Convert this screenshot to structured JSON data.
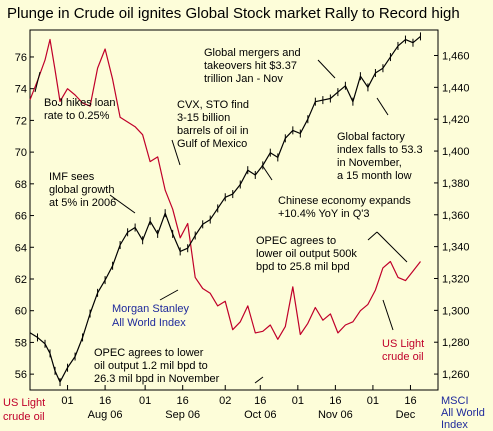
{
  "chart_data": {
    "type": "line",
    "title": "Plunge in Crude oil ignites Global Stock market Rally to Record high",
    "left_axis": {
      "label_lines": [
        "US Light",
        "crude oil"
      ],
      "ticks": [
        56,
        58,
        60,
        62,
        64,
        66,
        68,
        70,
        72,
        74,
        76
      ],
      "ylim": [
        55,
        77.7
      ]
    },
    "right_axis": {
      "label_lines": [
        "MSCI",
        "All World",
        "Index"
      ],
      "ticks": [
        "1,260",
        "1,280",
        "1,300",
        "1,320",
        "1,340",
        "1,360",
        "1,380",
        "1,400",
        "1,420",
        "1,440",
        "1,460"
      ],
      "tick_values": [
        1260,
        1280,
        1300,
        1320,
        1340,
        1360,
        1380,
        1400,
        1420,
        1440,
        1460
      ],
      "ylim": [
        1250,
        1476
      ]
    },
    "x_axis": {
      "day_ticks": [
        {
          "label": "01",
          "day": 0
        },
        {
          "label": "16",
          "day": 15
        },
        {
          "label": "01",
          "day": 31
        },
        {
          "label": "16",
          "day": 46
        },
        {
          "label": "02",
          "day": 63
        },
        {
          "label": "16",
          "day": 77
        },
        {
          "label": "01",
          "day": 92
        },
        {
          "label": "16",
          "day": 107
        },
        {
          "label": "01",
          "day": 122
        },
        {
          "label": "16",
          "day": 137
        }
      ],
      "month_labels": [
        {
          "label": "Aug 06",
          "day": 15
        },
        {
          "label": "Sep 06",
          "day": 46
        },
        {
          "label": "Oct 06",
          "day": 77
        },
        {
          "label": "Nov 06",
          "day": 107
        },
        {
          "label": "Dec",
          "day": 135
        }
      ],
      "xlim": [
        -15,
        148
      ]
    },
    "series": [
      {
        "name": "US Light crude oil",
        "axis": "left",
        "color": "#c0002a",
        "x": [
          -15,
          -12,
          -9,
          -7,
          -5,
          -3,
          0,
          3,
          6,
          9,
          12,
          15,
          18,
          21,
          24,
          27,
          30,
          33,
          36,
          39,
          42,
          45,
          48,
          51,
          54,
          57,
          60,
          63,
          66,
          69,
          72,
          75,
          78,
          81,
          84,
          87,
          90,
          93,
          96,
          99,
          102,
          105,
          108,
          111,
          114,
          117,
          120,
          123,
          126,
          129,
          132,
          135,
          138,
          141
        ],
        "values": [
          73.3,
          74.5,
          75.8,
          77.1,
          75.2,
          73.2,
          74.0,
          73.6,
          73.1,
          72.9,
          75.3,
          76.5,
          74.6,
          72.2,
          71.9,
          71.6,
          71.1,
          69.4,
          69.7,
          67.6,
          66.4,
          64.6,
          65.5,
          62.1,
          61.4,
          61.1,
          60.3,
          60.6,
          58.8,
          59.3,
          60.3,
          58.6,
          58.7,
          59.1,
          58.2,
          59.0,
          61.5,
          58.5,
          59.2,
          60.2,
          59.4,
          59.8,
          58.6,
          59.1,
          59.3,
          60.0,
          60.4,
          61.3,
          62.7,
          63.1,
          62.1,
          61.9,
          62.5,
          63.1
        ]
      },
      {
        "name": "Morgan Stanley All World Index",
        "axis": "right",
        "color": "#000000",
        "x": [
          -15,
          -12,
          -9,
          -7,
          -5,
          -3,
          0,
          3,
          6,
          9,
          12,
          15,
          18,
          21,
          24,
          27,
          30,
          33,
          36,
          39,
          42,
          45,
          48,
          51,
          54,
          57,
          60,
          63,
          66,
          69,
          72,
          75,
          78,
          81,
          84,
          87,
          90,
          93,
          96,
          99,
          102,
          105,
          108,
          111,
          114,
          117,
          120,
          123,
          126,
          129,
          132,
          135,
          138,
          141
        ],
        "values": [
          1286,
          1283,
          1279,
          1273,
          1262,
          1255,
          1264,
          1271,
          1283,
          1298,
          1311,
          1319,
          1328,
          1341,
          1349,
          1352,
          1344,
          1356,
          1348,
          1361,
          1348,
          1337,
          1339,
          1347,
          1354,
          1357,
          1364,
          1371,
          1373,
          1379,
          1388,
          1385,
          1391,
          1399,
          1396,
          1408,
          1413,
          1411,
          1420,
          1431,
          1432,
          1433,
          1437,
          1441,
          1431,
          1447,
          1440,
          1449,
          1452,
          1459,
          1466,
          1470,
          1468,
          1472
        ]
      }
    ],
    "legend_labels": [
      {
        "series": "Morgan Stanley All World Index",
        "lines": [
          "Morgan Stanley",
          "All World Index"
        ]
      },
      {
        "series": "US Light crude oil",
        "lines": [
          "US Light",
          "crude oil"
        ]
      }
    ],
    "annotations": [
      {
        "id": "boj",
        "lines": [
          "BoJ hikes loan",
          "rate to 0.25%"
        ]
      },
      {
        "id": "cvx",
        "lines": [
          "CVX, STO find",
          "3-15 billion",
          "barrels of oil in",
          "Gulf of Mexico"
        ]
      },
      {
        "id": "mergers",
        "lines": [
          "Global mergers and",
          "takeovers hit $3.37",
          "trillion Jan - Nov"
        ]
      },
      {
        "id": "factory",
        "lines": [
          "Global factory",
          "index falls to 53.3",
          "in November,",
          "a 15 month low"
        ]
      },
      {
        "id": "imf",
        "lines": [
          "IMF sees",
          "global growth",
          "at 5% in 2006"
        ]
      },
      {
        "id": "china",
        "lines": [
          "Chinese economy expands",
          "+10.4% YoY in Q'3"
        ]
      },
      {
        "id": "opec2",
        "lines": [
          "OPEC agrees to",
          "lower oil output 500k",
          "bpd to 25.8 mil bpd"
        ]
      },
      {
        "id": "opec1",
        "lines": [
          "OPEC agrees to lower",
          "oil output 1.2 mil bpd to",
          "26.3 mil bpd in November"
        ]
      }
    ],
    "grid": false,
    "colors": {
      "background": "#fdfdd9",
      "oil": "#c0002a",
      "index": "#000000",
      "index_label": "#1f2a9c"
    }
  }
}
